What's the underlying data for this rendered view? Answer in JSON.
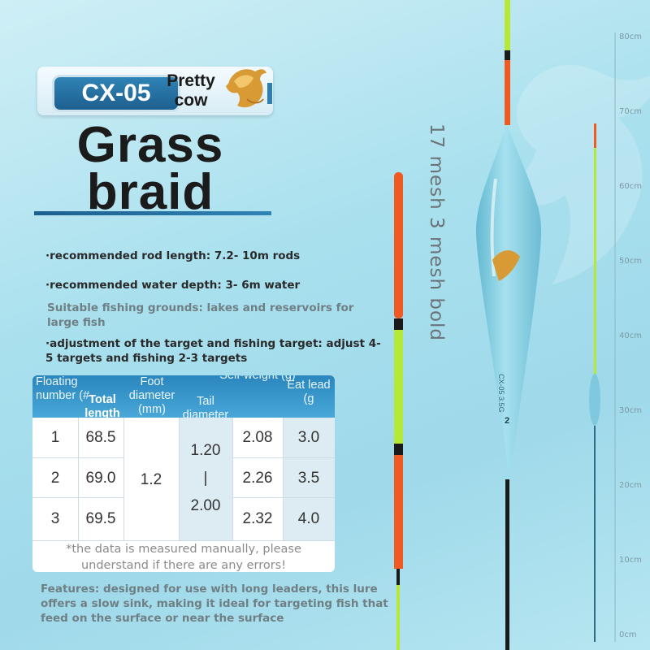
{
  "badge": {
    "code": "CX-05",
    "name_line1": "Pretty",
    "name_line2": "cow",
    "logo_icon": "golden-bull"
  },
  "title": {
    "line1": "Grass",
    "line2": "braid"
  },
  "bullets": [
    "·recommended rod length: 7.2- 10m rods",
    "·recommended water depth: 3- 6m water",
    "Suitable fishing grounds: lakes and reservoirs for large fish",
    "·adjustment of the target and fishing target: adjust 4-5 targets and fishing 2-3 targets"
  ],
  "table": {
    "headers": [
      "Floating number (#",
      "Total length",
      "Foot diameter (mm)",
      "Tail diameter (mm)",
      "Self-weight (g)",
      "Eat lead (g"
    ],
    "rows": [
      {
        "number": "1",
        "length": "68.5",
        "weight": "2.08",
        "lead": "3.0"
      },
      {
        "number": "2",
        "length": "69.0",
        "weight": "2.26",
        "lead": "3.5"
      },
      {
        "number": "3",
        "length": "69.5",
        "weight": "2.32",
        "lead": "4.0"
      }
    ],
    "foot_diameter": "1.2",
    "tail_diameter": {
      "from": "1.20",
      "sep": "|",
      "to": "2.00"
    }
  },
  "note": "*the data is measured manually, please understand if there are any errors!",
  "features": "Features: designed for use with long leaders, this lure offers a slow sink, making it ideal for targeting fish that feed on the surface or near the surface",
  "mesh_text": "17 mesh 3 mesh bold",
  "float_label": "CX-05 3.5G",
  "float_number": "2",
  "ruler": {
    "labels": [
      "80cm",
      "70cm",
      "60cm",
      "50cm",
      "40cm",
      "30cm",
      "20cm",
      "10cm",
      "0cm"
    ]
  },
  "colors": {
    "accent": "#2a86bd",
    "tip_orange": "#f0591f",
    "tip_green": "#b6e838",
    "body": "#7fc9de"
  }
}
